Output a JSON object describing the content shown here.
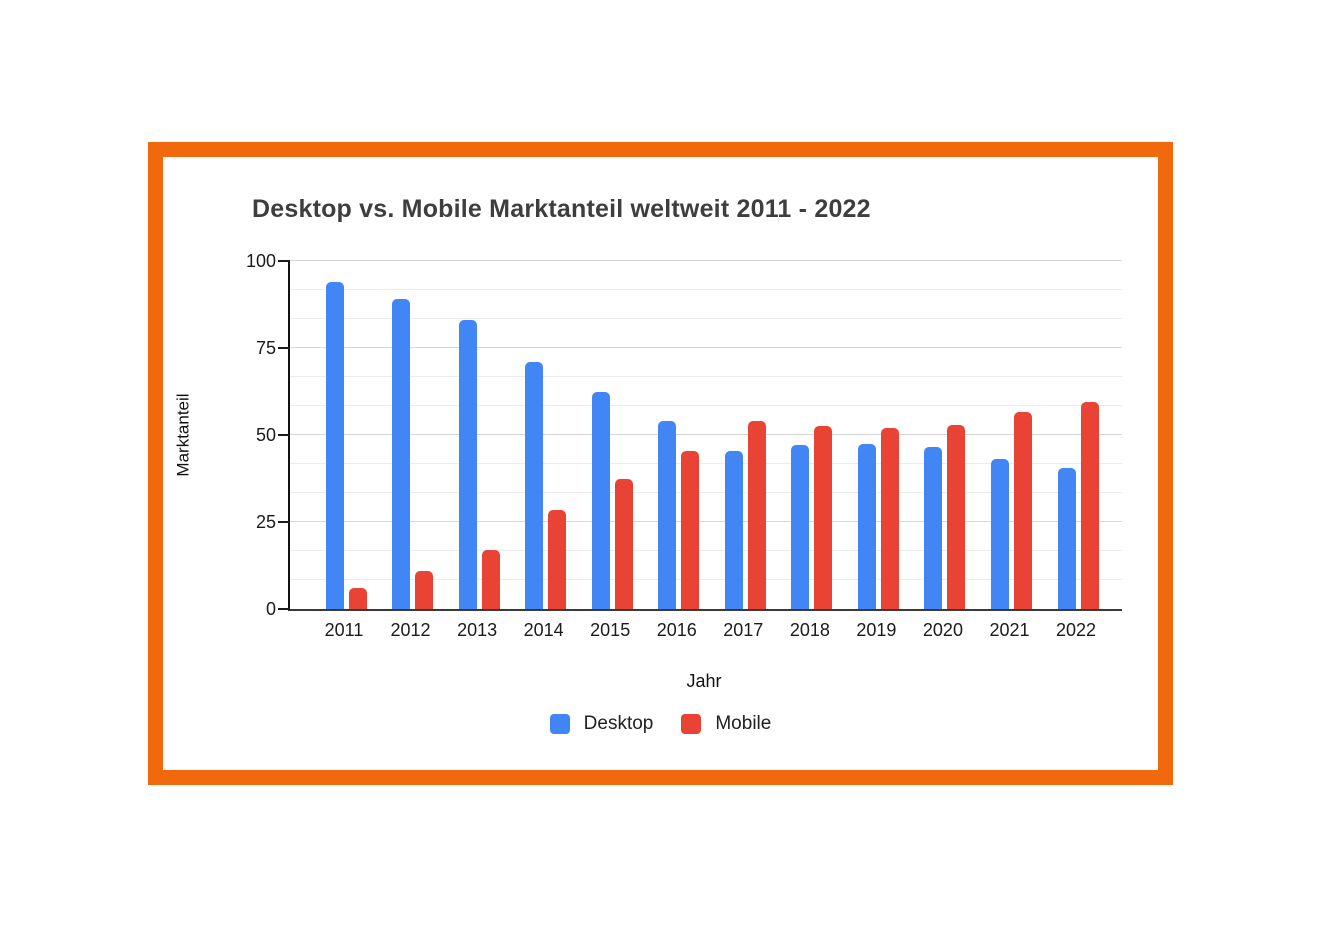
{
  "frame": {
    "border_color": "#F2690D"
  },
  "colors": {
    "desktop_blue": "#4285F4",
    "mobile_red": "#E94335",
    "frame_orange": "#F2690D",
    "title_gray": "#3E3E3E",
    "gridline_major": "#d8d8d8",
    "gridline_minor": "#ececec"
  },
  "chart_data": {
    "type": "bar",
    "title": "Desktop vs. Mobile Marktanteil weltweit 2011 - 2022",
    "xlabel": "Jahr",
    "ylabel": "Marktanteil",
    "categories": [
      "2011",
      "2012",
      "2013",
      "2014",
      "2015",
      "2016",
      "2017",
      "2018",
      "2019",
      "2020",
      "2021",
      "2022"
    ],
    "series": [
      {
        "name": "Desktop",
        "color": "#4285F4",
        "values": [
          94,
          89,
          83,
          71,
          62.5,
          54,
          45.5,
          47,
          47.5,
          46.5,
          43,
          40.5
        ]
      },
      {
        "name": "Mobile",
        "color": "#E94335",
        "values": [
          6,
          11,
          17,
          28.5,
          37.5,
          45.5,
          54,
          52.5,
          52,
          53,
          56.5,
          59.5
        ]
      }
    ],
    "ylim": [
      0,
      100
    ],
    "yticks": [
      0,
      25,
      50,
      75,
      100
    ],
    "minor_gridlines_per_major_interval": 3,
    "grid": true,
    "legend_position": "bottom"
  }
}
